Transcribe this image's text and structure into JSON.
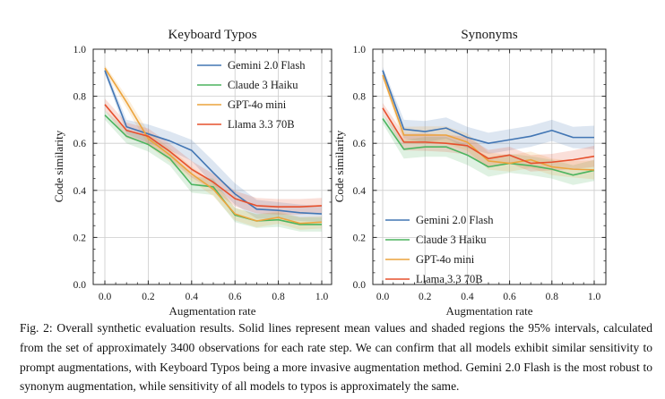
{
  "caption": {
    "text": "Fig. 2: Overall synthetic evaluation results. Solid lines represent mean values and shaded regions the 95% intervals, calculated from the set of approximately 3400 observations for each rate step. We can confirm that all models exhibit similar sensitivity to prompt augmentations, with Keyboard Typos being a more invasive augmentation method. Gemini 2.0 Flash is the most robust to synonym augmentation, while sensitivity of all models to typos is approximately the same."
  },
  "chart_data": [
    {
      "type": "line",
      "title": "Keyboard Typos",
      "xlabel": "Augmentation rate",
      "ylabel": "Code similarity",
      "xlim": [
        -0.05,
        1.05
      ],
      "ylim": [
        0,
        1
      ],
      "grid": true,
      "xtick_labels": [
        "0.0",
        "0.2",
        "0.4",
        "0.6",
        "0.8",
        "1.0"
      ],
      "ytick_labels": [
        "0.0",
        "0.2",
        "0.4",
        "0.6",
        "0.8",
        "1.0"
      ],
      "legend_position": "upper right",
      "x": [
        0.0,
        0.1,
        0.2,
        0.3,
        0.4,
        0.5,
        0.6,
        0.7,
        0.8,
        0.9,
        1.0
      ],
      "series": [
        {
          "name": "Gemini 2.0 Flash",
          "color": "#4276B4",
          "values": [
            0.91,
            0.67,
            0.64,
            0.61,
            0.57,
            0.475,
            0.385,
            0.32,
            0.315,
            0.305,
            0.3
          ],
          "band": [
            0.015,
            0.03,
            0.04,
            0.04,
            0.045,
            0.05,
            0.045,
            0.04,
            0.035,
            0.035,
            0.035
          ]
        },
        {
          "name": "Claude 3 Haiku",
          "color": "#4CB45F",
          "values": [
            0.72,
            0.63,
            0.595,
            0.535,
            0.425,
            0.415,
            0.295,
            0.27,
            0.275,
            0.255,
            0.255
          ],
          "band": [
            0.02,
            0.03,
            0.03,
            0.03,
            0.035,
            0.035,
            0.03,
            0.03,
            0.03,
            0.03,
            0.03
          ]
        },
        {
          "name": "GPT-4o mini",
          "color": "#ECA43D",
          "values": [
            0.92,
            0.775,
            0.62,
            0.55,
            0.47,
            0.405,
            0.3,
            0.27,
            0.285,
            0.26,
            0.265
          ],
          "band": [
            0.012,
            0.025,
            0.03,
            0.03,
            0.03,
            0.03,
            0.027,
            0.027,
            0.027,
            0.027,
            0.027
          ]
        },
        {
          "name": "Llama 3.3 70B",
          "color": "#E6502D",
          "values": [
            0.765,
            0.655,
            0.63,
            0.565,
            0.49,
            0.435,
            0.365,
            0.335,
            0.33,
            0.33,
            0.335
          ],
          "band": [
            0.025,
            0.033,
            0.033,
            0.033,
            0.035,
            0.035,
            0.033,
            0.033,
            0.033,
            0.033,
            0.033
          ]
        }
      ]
    },
    {
      "type": "line",
      "title": "Synonyms",
      "xlabel": "Augmentation rate",
      "ylabel": "Code similarity",
      "xlim": [
        -0.05,
        1.05
      ],
      "ylim": [
        0,
        1
      ],
      "grid": true,
      "xtick_labels": [
        "0.0",
        "0.2",
        "0.4",
        "0.6",
        "0.8",
        "1.0"
      ],
      "ytick_labels": [
        "0.0",
        "0.2",
        "0.4",
        "0.6",
        "0.8",
        "1.0"
      ],
      "legend_position": "lower left",
      "x": [
        0.0,
        0.1,
        0.2,
        0.3,
        0.4,
        0.5,
        0.6,
        0.7,
        0.8,
        0.9,
        1.0
      ],
      "series": [
        {
          "name": "Gemini 2.0 Flash",
          "color": "#4276B4",
          "values": [
            0.91,
            0.66,
            0.65,
            0.665,
            0.625,
            0.6,
            0.615,
            0.63,
            0.655,
            0.625,
            0.625
          ],
          "band": [
            0.015,
            0.04,
            0.045,
            0.045,
            0.045,
            0.045,
            0.045,
            0.045,
            0.045,
            0.045,
            0.05
          ]
        },
        {
          "name": "Claude 3 Haiku",
          "color": "#4CB45F",
          "values": [
            0.705,
            0.575,
            0.585,
            0.585,
            0.55,
            0.5,
            0.515,
            0.505,
            0.49,
            0.465,
            0.485
          ],
          "band": [
            0.02,
            0.04,
            0.042,
            0.042,
            0.042,
            0.042,
            0.04,
            0.04,
            0.04,
            0.042,
            0.045
          ]
        },
        {
          "name": "GPT-4o mini",
          "color": "#ECA43D",
          "values": [
            0.89,
            0.635,
            0.635,
            0.635,
            0.605,
            0.525,
            0.515,
            0.53,
            0.5,
            0.49,
            0.487
          ],
          "band": [
            0.012,
            0.035,
            0.037,
            0.037,
            0.037,
            0.037,
            0.035,
            0.035,
            0.035,
            0.035,
            0.04
          ]
        },
        {
          "name": "Llama 3.3 70B",
          "color": "#E6502D",
          "values": [
            0.75,
            0.605,
            0.605,
            0.6,
            0.59,
            0.535,
            0.55,
            0.515,
            0.52,
            0.53,
            0.545
          ],
          "band": [
            0.022,
            0.035,
            0.037,
            0.037,
            0.037,
            0.037,
            0.035,
            0.035,
            0.035,
            0.04,
            0.045
          ]
        }
      ]
    }
  ]
}
